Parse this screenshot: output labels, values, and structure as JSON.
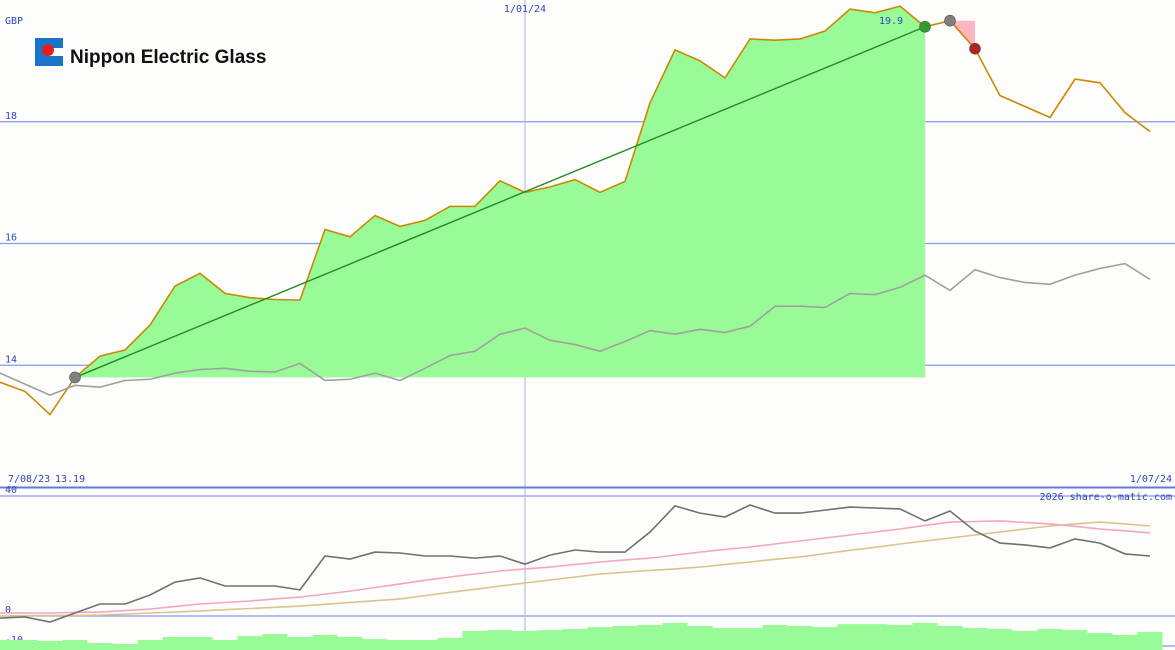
{
  "header": {
    "title": "Nippon Electric Glass"
  },
  "chart_data": [
    {
      "type": "line",
      "unit": "GBP",
      "x": [
        0,
        7,
        14,
        21,
        28,
        35,
        42,
        49,
        56,
        63,
        70,
        77,
        84,
        91,
        98,
        105,
        112,
        119,
        126,
        133,
        140,
        147,
        154,
        161,
        168,
        175,
        182,
        189,
        196,
        203,
        210,
        217,
        224,
        231,
        238,
        245,
        252,
        259,
        266,
        273,
        280,
        287,
        294,
        301,
        308,
        315,
        322
      ],
      "xlim": [
        0,
        329
      ],
      "xticks": [
        {
          "value": 0,
          "label": "7/08/23"
        },
        {
          "value": 147,
          "label": "1/01/24"
        },
        {
          "value": 329,
          "label": "1/07/24"
        }
      ],
      "ylim": [
        12,
        20
      ],
      "yticks": [
        14,
        16,
        18
      ],
      "grid": true,
      "series": [
        {
          "color": "#cc8800",
          "values": [
            13.72,
            13.57,
            13.19,
            13.8,
            14.15,
            14.25,
            14.66,
            15.3,
            15.51,
            15.18,
            15.11,
            15.08,
            15.07,
            16.23,
            16.11,
            16.46,
            16.28,
            16.38,
            16.61,
            16.61,
            17.03,
            16.84,
            16.93,
            17.05,
            16.84,
            17.02,
            18.31,
            19.18,
            19.0,
            18.72,
            19.36,
            19.34,
            19.36,
            19.49,
            19.85,
            19.79,
            19.9,
            19.56,
            19.66,
            19.2,
            18.43,
            18.25,
            18.07,
            18.7,
            18.64,
            18.15,
            17.84
          ]
        },
        {
          "color": "#a0a0a0",
          "values": [
            13.87,
            13.69,
            13.51,
            13.67,
            13.64,
            13.75,
            13.77,
            13.87,
            13.93,
            13.95,
            13.9,
            13.89,
            14.03,
            13.75,
            13.77,
            13.87,
            13.75,
            13.95,
            14.16,
            14.23,
            14.51,
            14.61,
            14.41,
            14.34,
            14.23,
            14.39,
            14.57,
            14.51,
            14.59,
            14.54,
            14.64,
            14.97,
            14.97,
            14.95,
            15.18,
            15.16,
            15.28,
            15.48,
            15.23,
            15.57,
            15.44,
            15.36,
            15.33,
            15.48,
            15.59,
            15.67,
            15.41
          ]
        }
      ],
      "markers": [
        {
          "x": 21,
          "y": 13.8,
          "color": "#808080"
        },
        {
          "x": 259,
          "y": 19.56,
          "color": "#2e9e2e"
        },
        {
          "x": 266,
          "y": 19.66,
          "color": "#808080"
        },
        {
          "x": 273,
          "y": 19.2,
          "color": "#b22222"
        }
      ],
      "gain_color": "#98fb98",
      "loss_color": "#ffb6c1",
      "trend_color": "#228b22",
      "high_label": "19.9",
      "low_label": "13.19"
    },
    {
      "type": "line",
      "annotation": "2026 share-o-matic.com",
      "x": [
        0,
        7,
        14,
        21,
        28,
        35,
        42,
        49,
        56,
        63,
        70,
        77,
        84,
        91,
        98,
        105,
        112,
        119,
        126,
        133,
        140,
        147,
        154,
        161,
        168,
        175,
        182,
        189,
        196,
        203,
        210,
        217,
        224,
        231,
        238,
        245,
        252,
        259,
        266,
        273,
        280,
        287,
        294,
        301,
        308,
        315,
        322
      ],
      "xlim": [
        0,
        329
      ],
      "ylim": [
        -11.33,
        42.67
      ],
      "yticks": [
        40,
        0,
        -10
      ],
      "grid": true,
      "series": [
        {
          "style": "bar",
          "color": "#98fb98",
          "values": [
            -8,
            -8,
            -8.3,
            -8,
            -9,
            -9.3,
            -8,
            -7,
            -7,
            -8,
            -6.7,
            -6,
            -7,
            -6.3,
            -7,
            -7.7,
            -8,
            -8,
            -7.3,
            -5,
            -4.7,
            -5,
            -4.7,
            -4.3,
            -3.7,
            -3.3,
            -3,
            -2.3,
            -3.3,
            -4,
            -4,
            -3,
            -3.3,
            -3.7,
            -2.7,
            -2.7,
            -3,
            -2.3,
            -3.3,
            -4,
            -4.3,
            -5,
            -4.3,
            -4.7,
            -5.7,
            -6.3,
            -5.3
          ]
        },
        {
          "color": "#d9c48f",
          "values": [
            0,
            0.1,
            0.2,
            0.2,
            0.3,
            0.6,
            1,
            1.3,
            1.7,
            2.1,
            2.5,
            2.9,
            3.3,
            3.9,
            4.5,
            5.1,
            5.7,
            6.8,
            7.9,
            8.9,
            10,
            11,
            12,
            13,
            14,
            14.6,
            15.2,
            15.7,
            16.3,
            17.2,
            18,
            18.9,
            19.7,
            20.8,
            21.9,
            22.9,
            24,
            25,
            26,
            27,
            28,
            29,
            30,
            30.7,
            31.3,
            30.7,
            30
          ]
        },
        {
          "color": "#f4a6c0",
          "values": [
            1,
            1,
            1,
            1.2,
            1.3,
            1.8,
            2.3,
            3.2,
            4,
            4.5,
            5,
            5.7,
            6.3,
            7.3,
            8.3,
            9.5,
            10.7,
            11.9,
            13,
            14,
            15,
            15.7,
            16.3,
            17.2,
            18,
            18.7,
            19.3,
            20.3,
            21.3,
            22.2,
            23,
            24,
            25,
            26,
            27,
            28,
            29,
            30.2,
            31.3,
            31.5,
            31.7,
            31.2,
            30.7,
            29.9,
            29,
            28.4,
            27.7
          ]
        },
        {
          "color": "#707070",
          "values": [
            -0.7,
            -0.3,
            -2,
            1,
            4,
            4,
            7,
            11.3,
            12.7,
            10,
            10,
            10,
            8.7,
            20,
            19,
            21.3,
            21,
            20,
            20,
            19.3,
            20,
            17.3,
            20.3,
            22,
            21.3,
            21.3,
            28,
            36.7,
            34.3,
            33,
            37,
            34.3,
            34.3,
            35.3,
            36.3,
            36,
            35.7,
            31.7,
            35,
            28.3,
            24.3,
            23.7,
            22.7,
            25.7,
            24.3,
            20.7,
            20
          ]
        }
      ]
    }
  ]
}
